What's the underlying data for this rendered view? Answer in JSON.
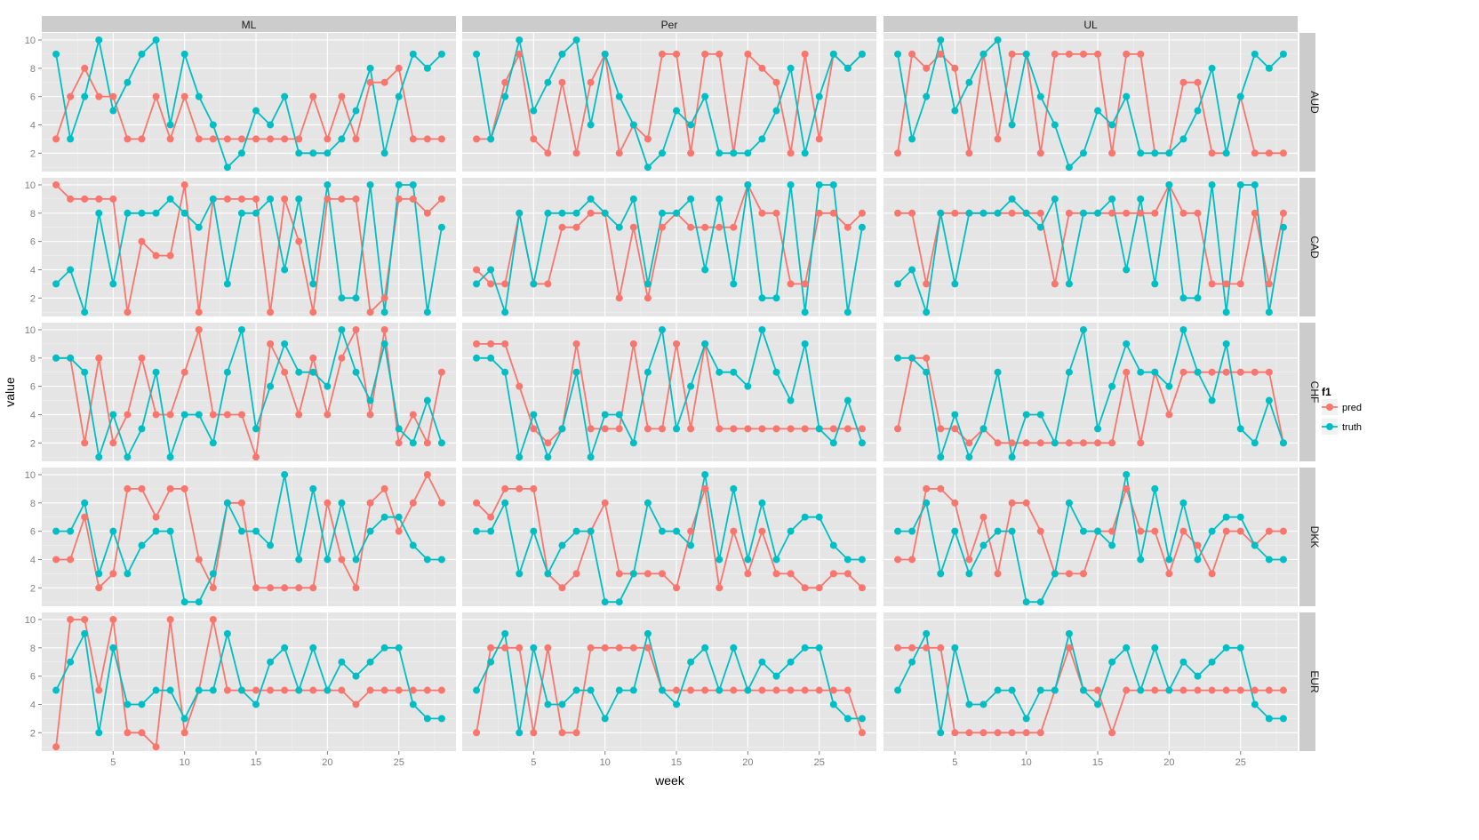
{
  "chart_data": {
    "type": "line",
    "layout": "facet_grid",
    "xlabel": "week",
    "ylabel": "value",
    "x": [
      1,
      2,
      3,
      4,
      5,
      6,
      7,
      8,
      9,
      10,
      11,
      12,
      13,
      14,
      15,
      16,
      17,
      18,
      19,
      20,
      21,
      22,
      23,
      24,
      25,
      26,
      27,
      28
    ],
    "x_ticks": [
      5,
      10,
      15,
      20,
      25
    ],
    "y_ticks": [
      2,
      4,
      6,
      8,
      10
    ],
    "ylim": [
      0.7,
      10.5
    ],
    "xlim": [
      0,
      29
    ],
    "columns": [
      "ML",
      "Per",
      "UL"
    ],
    "rows": [
      "AUD",
      "CAD",
      "CHF",
      "DKK",
      "EUR"
    ],
    "legend": {
      "title": "f1",
      "entries": [
        {
          "name": "pred",
          "color": "#F8766D"
        },
        {
          "name": "truth",
          "color": "#00BFC4"
        }
      ],
      "position": "right"
    },
    "colors": {
      "pred": "#F8766D",
      "truth": "#00BFC4",
      "panel_bg": "#E5E5E5",
      "strip_bg": "#CCCCCC",
      "grid": "#FFFFFF"
    },
    "truth": {
      "AUD": [
        9,
        3,
        6,
        10,
        5,
        7,
        9,
        10,
        4,
        9,
        6,
        4,
        1,
        2,
        5,
        4,
        6,
        2,
        2,
        2,
        3,
        5,
        8,
        2,
        6,
        9,
        8,
        9
      ],
      "CAD": [
        3,
        4,
        1,
        8,
        3,
        8,
        8,
        8,
        9,
        8,
        7,
        9,
        3,
        8,
        8,
        9,
        4,
        9,
        3,
        10,
        2,
        2,
        10,
        1,
        10,
        10,
        1,
        7
      ],
      "CHF": [
        8,
        8,
        7,
        1,
        4,
        1,
        3,
        7,
        1,
        4,
        4,
        2,
        7,
        10,
        3,
        6,
        9,
        7,
        7,
        6,
        10,
        7,
        5,
        9,
        3,
        2,
        5,
        2
      ],
      "DKK": [
        6,
        6,
        8,
        3,
        6,
        3,
        5,
        6,
        6,
        1,
        1,
        3,
        8,
        6,
        6,
        5,
        10,
        4,
        9,
        4,
        8,
        4,
        6,
        7,
        7,
        5,
        4,
        4
      ],
      "EUR": [
        5,
        7,
        9,
        2,
        8,
        4,
        4,
        5,
        5,
        3,
        5,
        5,
        9,
        5,
        4,
        7,
        8,
        5,
        8,
        5,
        7,
        6,
        7,
        8,
        8,
        4,
        3,
        3
      ]
    },
    "pred": {
      "ML": {
        "AUD": [
          3,
          6,
          8,
          6,
          6,
          3,
          3,
          6,
          3,
          6,
          3,
          3,
          3,
          3,
          3,
          3,
          3,
          3,
          6,
          3,
          6,
          3,
          7,
          7,
          8,
          3,
          3,
          3
        ],
        "CAD": [
          10,
          9,
          9,
          9,
          9,
          1,
          6,
          5,
          5,
          10,
          1,
          9,
          9,
          9,
          9,
          1,
          9,
          6,
          1,
          9,
          9,
          9,
          1,
          2,
          9,
          9,
          8,
          9
        ],
        "CHF": [
          8,
          8,
          2,
          8,
          2,
          4,
          8,
          4,
          4,
          7,
          10,
          4,
          4,
          4,
          1,
          9,
          7,
          4,
          8,
          4,
          8,
          10,
          4,
          10,
          2,
          4,
          2,
          7
        ],
        "DKK": [
          4,
          4,
          7,
          2,
          3,
          9,
          9,
          7,
          9,
          9,
          4,
          2,
          8,
          8,
          2,
          2,
          2,
          2,
          2,
          8,
          4,
          2,
          8,
          9,
          6,
          8,
          10,
          8
        ],
        "EUR": [
          1,
          10,
          10,
          5,
          10,
          2,
          2,
          1,
          10,
          2,
          5,
          10,
          5,
          5,
          5,
          5,
          5,
          5,
          5,
          5,
          5,
          4,
          5,
          5,
          5,
          5,
          5,
          5
        ]
      },
      "Per": {
        "AUD": [
          3,
          3,
          7,
          9,
          3,
          2,
          7,
          2,
          7,
          9,
          2,
          4,
          3,
          9,
          9,
          2,
          9,
          9,
          2,
          9,
          8,
          7,
          2,
          9,
          3,
          9,
          8,
          9
        ],
        "CAD": [
          4,
          3,
          3,
          8,
          3,
          3,
          7,
          7,
          8,
          8,
          2,
          7,
          2,
          7,
          8,
          7,
          7,
          7,
          7,
          10,
          8,
          8,
          3,
          3,
          8,
          8,
          7,
          8
        ],
        "CHF": [
          9,
          9,
          9,
          6,
          3,
          2,
          3,
          9,
          3,
          3,
          3,
          9,
          3,
          3,
          9,
          3,
          9,
          3,
          3,
          3,
          3,
          3,
          3,
          3,
          3,
          3,
          3,
          3
        ],
        "DKK": [
          8,
          7,
          9,
          9,
          9,
          3,
          2,
          3,
          6,
          8,
          3,
          3,
          3,
          3,
          2,
          6,
          9,
          2,
          6,
          3,
          6,
          3,
          3,
          2,
          2,
          3,
          3,
          2
        ],
        "EUR": [
          2,
          8,
          8,
          8,
          2,
          8,
          2,
          2,
          8,
          8,
          8,
          8,
          8,
          5,
          5,
          5,
          5,
          5,
          5,
          5,
          5,
          5,
          5,
          5,
          5,
          5,
          5,
          2
        ]
      },
      "UL": {
        "AUD": [
          2,
          9,
          8,
          9,
          8,
          2,
          9,
          3,
          9,
          9,
          2,
          9,
          9,
          9,
          9,
          2,
          9,
          9,
          2,
          2,
          7,
          7,
          2,
          2,
          6,
          2,
          2,
          2
        ],
        "CAD": [
          8,
          8,
          3,
          8,
          8,
          8,
          8,
          8,
          8,
          8,
          8,
          3,
          8,
          8,
          8,
          8,
          8,
          8,
          8,
          10,
          8,
          8,
          3,
          3,
          3,
          8,
          3,
          8
        ],
        "CHF": [
          3,
          8,
          8,
          3,
          3,
          2,
          3,
          2,
          2,
          2,
          2,
          2,
          2,
          2,
          2,
          2,
          7,
          2,
          7,
          4,
          7,
          7,
          7,
          7,
          7,
          7,
          7,
          2
        ],
        "DKK": [
          4,
          4,
          9,
          9,
          8,
          4,
          7,
          3,
          8,
          8,
          6,
          3,
          3,
          3,
          6,
          6,
          9,
          6,
          6,
          3,
          6,
          5,
          3,
          6,
          6,
          5,
          6,
          6
        ],
        "EUR": [
          8,
          8,
          8,
          8,
          2,
          2,
          2,
          2,
          2,
          2,
          2,
          5,
          8,
          5,
          5,
          2,
          5,
          5,
          5,
          5,
          5,
          5,
          5,
          5,
          5,
          5,
          5,
          5
        ]
      }
    }
  }
}
